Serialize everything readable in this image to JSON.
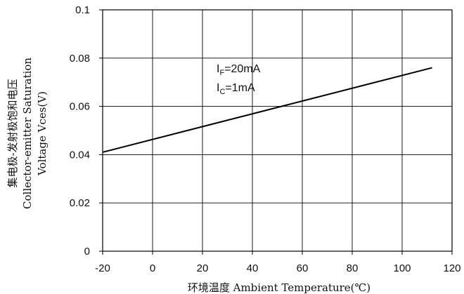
{
  "chart_data": {
    "type": "line",
    "title": "",
    "xlabel": "环境温度 Ambient Temperature(℃)",
    "ylabel_lines": [
      "集电极-发射极饱和电压",
      "Collector-emitter Saturation",
      "Voltage Vces(V)"
    ],
    "xlim": [
      -20,
      120
    ],
    "ylim": [
      0,
      0.1
    ],
    "x_ticks": [
      -20,
      0,
      20,
      40,
      60,
      80,
      100,
      120
    ],
    "x_tick_labels": [
      "-20",
      "0",
      "20",
      "40",
      "60",
      "80",
      "100",
      "120"
    ],
    "y_ticks": [
      0,
      0.02,
      0.04,
      0.06,
      0.08,
      0.1
    ],
    "y_tick_labels": [
      "0",
      "0.02",
      "0.04",
      "0.06",
      "0.08",
      "0.1"
    ],
    "grid": true,
    "series": [
      {
        "x": [
          -20,
          112
        ],
        "y": [
          0.041,
          0.076
        ]
      }
    ],
    "annotations": [
      {
        "main": "I",
        "sub": "F",
        "rest": "=20mA"
      },
      {
        "main": "I",
        "sub": "C",
        "rest": "=1mA"
      }
    ],
    "line_color": "#000000",
    "grid_color": "#000000"
  }
}
